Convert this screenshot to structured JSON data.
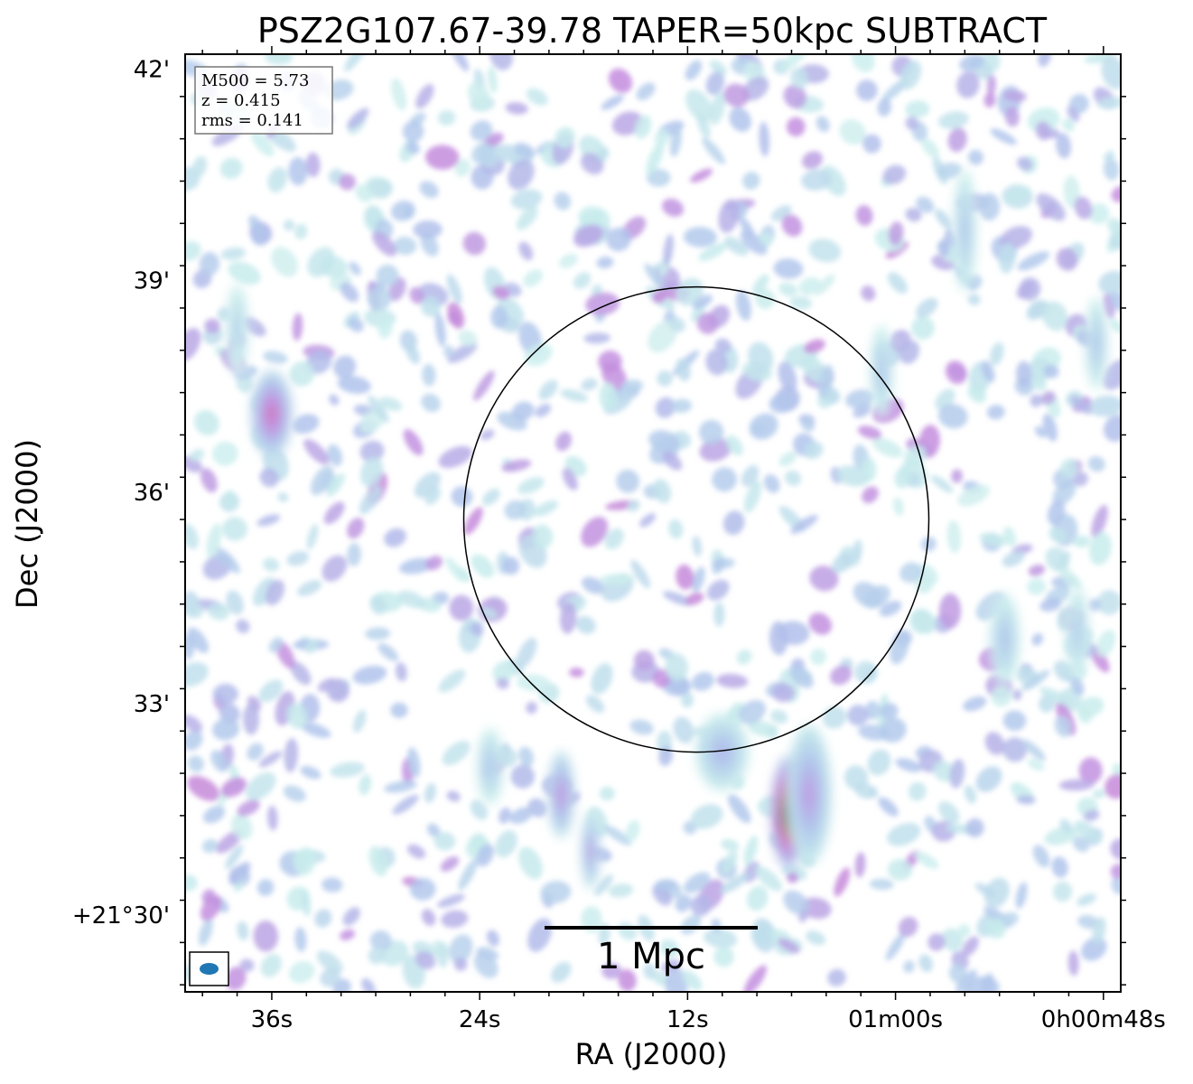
{
  "chart_data": {
    "type": "heatmap",
    "title": "PSZ2G107.67-39.78 TAPER=50kpc SUBTRACT",
    "xlabel": "RA (J2000)",
    "ylabel": "Dec (J2000)",
    "x_ticks": [
      {
        "label": "36s",
        "ra_sec": 36
      },
      {
        "label": "24s",
        "ra_sec": 24
      },
      {
        "label": "12s",
        "ra_sec": 12
      },
      {
        "label": "01m00s",
        "ra_sec": 0
      },
      {
        "label": "0h00m48s",
        "ra_sec": -12
      }
    ],
    "y_ticks": [
      {
        "label": "42'",
        "dec_arcmin": 42
      },
      {
        "label": "39'",
        "dec_arcmin": 39
      },
      {
        "label": "36'",
        "dec_arcmin": 36
      },
      {
        "label": "33'",
        "dec_arcmin": 33
      },
      {
        "label": "+21°30'",
        "dec_arcmin": 30
      }
    ],
    "ra_range_sec": [
      41,
      -13
    ],
    "dec_range_arcmin": [
      28.9,
      42.2
    ],
    "info": {
      "m500": "M500 = 5.73",
      "z": "z = 0.415",
      "rms": "rms = 0.141"
    },
    "scale_bar_label": "1 Mpc",
    "circle": {
      "center_ra_sec": 11.5,
      "center_dec_arcmin": 35.6,
      "radius_arcmin": 3.3
    },
    "sources": [
      {
        "ra_sec": 6.2,
        "dec_arcmin": 31.45,
        "peak": 1.0,
        "sx": 0.45,
        "sy": 0.36
      },
      {
        "ra_sec": 5.0,
        "dec_arcmin": 31.7,
        "peak": 0.45,
        "sx": 0.6,
        "sy": 0.45
      },
      {
        "ra_sec": 36.0,
        "dec_arcmin": 37.1,
        "peak": 0.62,
        "sx": 0.55,
        "sy": 0.28
      },
      {
        "ra_sec": 19.3,
        "dec_arcmin": 31.7,
        "peak": 0.5,
        "sx": 0.35,
        "sy": 0.28
      },
      {
        "ra_sec": 17.6,
        "dec_arcmin": 30.9,
        "peak": 0.45,
        "sx": 0.25,
        "sy": 0.25
      },
      {
        "ra_sec": 10.0,
        "dec_arcmin": 32.3,
        "peak": 0.35,
        "sx": 0.7,
        "sy": 0.25
      },
      {
        "ra_sec": 23.4,
        "dec_arcmin": 32.1,
        "peak": 0.3,
        "sx": 0.35,
        "sy": 0.25
      },
      {
        "ra_sec": 0.8,
        "dec_arcmin": 37.7,
        "peak": 0.3,
        "sx": 0.3,
        "sy": 0.3
      },
      {
        "ra_sec": -4.0,
        "dec_arcmin": 39.7,
        "peak": 0.3,
        "sx": 0.3,
        "sy": 0.4
      },
      {
        "ra_sec": -11.6,
        "dec_arcmin": 38.1,
        "peak": 0.3,
        "sx": 0.3,
        "sy": 0.3
      },
      {
        "ra_sec": -6.3,
        "dec_arcmin": 33.9,
        "peak": 0.3,
        "sx": 0.4,
        "sy": 0.3
      },
      {
        "ra_sec": -10.5,
        "dec_arcmin": 34.0,
        "peak": 0.28,
        "sx": 0.3,
        "sy": 0.3
      },
      {
        "ra_sec": 38.0,
        "dec_arcmin": 38.3,
        "peak": 0.25,
        "sx": 0.3,
        "sy": 0.3
      }
    ]
  }
}
